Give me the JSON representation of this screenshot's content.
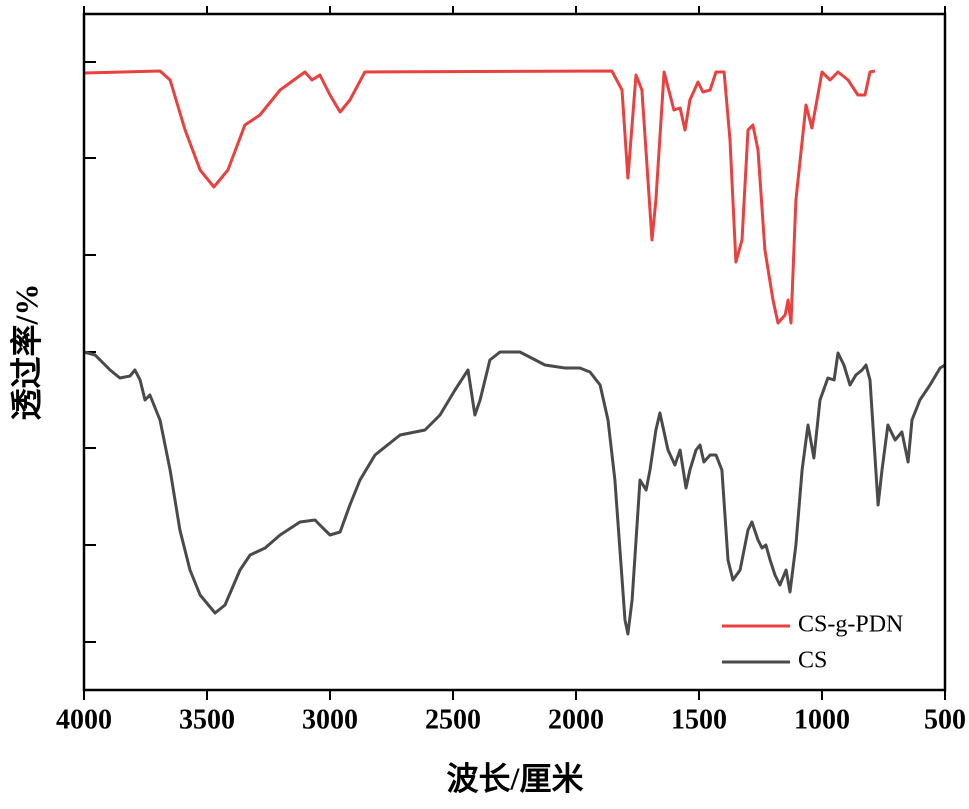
{
  "chart_data": {
    "type": "line",
    "xlabel": "波长/厘米",
    "ylabel": "透过率/%",
    "xlim": [
      4000,
      500
    ],
    "xticks": [
      4000,
      3500,
      3000,
      2500,
      2000,
      1500,
      1000,
      500
    ],
    "ylim": [
      0,
      676
    ],
    "yticks": [
      48,
      145,
      242,
      338,
      435,
      532,
      628
    ],
    "legend": "lower right",
    "series": [
      {
        "name": "CS-g-PDN",
        "color": "#e8413f",
        "x": [
          4000,
          3691,
          3650,
          3589,
          3528,
          3472,
          3415,
          3346,
          3285,
          3203,
          3102,
          3073,
          3041,
          3000,
          2959,
          2919,
          2858,
          1854,
          1813,
          1789,
          1756,
          1732,
          1691,
          1675,
          1642,
          1602,
          1577,
          1557,
          1537,
          1504,
          1484,
          1455,
          1431,
          1398,
          1374,
          1350,
          1325,
          1301,
          1281,
          1260,
          1232,
          1199,
          1179,
          1150,
          1138,
          1126,
          1106,
          1065,
          1041,
          1000,
          967,
          935,
          894,
          854,
          825,
          805,
          785
        ],
        "values": [
          617,
          619,
          610,
          560,
          520,
          503,
          520,
          565,
          575,
          600,
          618,
          610,
          615,
          595,
          578,
          590,
          618,
          619,
          600,
          512,
          615,
          600,
          450,
          490,
          618,
          580,
          582,
          560,
          590,
          608,
          598,
          600,
          618,
          618,
          550,
          428,
          450,
          560,
          565,
          540,
          440,
          390,
          367,
          375,
          390,
          367,
          490,
          585,
          562,
          618,
          610,
          618,
          610,
          595,
          595,
          618,
          619
        ]
      },
      {
        "name": "CS",
        "color": "#4a4a4a",
        "x": [
          4000,
          3955,
          3894,
          3854,
          3813,
          3793,
          3772,
          3752,
          3732,
          3691,
          3650,
          3610,
          3569,
          3528,
          3467,
          3427,
          3366,
          3325,
          3264,
          3203,
          3122,
          3061,
          3041,
          3000,
          2959,
          2919,
          2878,
          2817,
          2715,
          2614,
          2553,
          2492,
          2439,
          2411,
          2390,
          2350,
          2309,
          2228,
          2126,
          2045,
          1984,
          1943,
          1902,
          1870,
          1842,
          1801,
          1789,
          1772,
          1740,
          1715,
          1699,
          1675,
          1659,
          1626,
          1598,
          1577,
          1553,
          1537,
          1512,
          1496,
          1480,
          1455,
          1431,
          1407,
          1382,
          1362,
          1333,
          1301,
          1285,
          1260,
          1244,
          1228,
          1211,
          1191,
          1171,
          1146,
          1130,
          1106,
          1081,
          1057,
          1033,
          1008,
          976,
          951,
          935,
          911,
          886,
          862,
          837,
          821,
          805,
          789,
          772,
          756,
          732,
          703,
          675,
          650,
          634,
          602,
          561,
          520,
          500
        ],
        "values": [
          338,
          335,
          320,
          312,
          314,
          320,
          310,
          290,
          295,
          270,
          220,
          160,
          120,
          95,
          77,
          85,
          120,
          135,
          142,
          155,
          168,
          170,
          165,
          155,
          158,
          185,
          210,
          235,
          255,
          260,
          275,
          300,
          320,
          275,
          290,
          330,
          338,
          338,
          325,
          322,
          322,
          318,
          305,
          270,
          210,
          70,
          56,
          90,
          210,
          200,
          220,
          260,
          277,
          240,
          225,
          240,
          202,
          220,
          240,
          245,
          228,
          235,
          235,
          220,
          130,
          110,
          120,
          160,
          168,
          150,
          142,
          145,
          130,
          115,
          105,
          120,
          98,
          145,
          220,
          265,
          232,
          290,
          312,
          310,
          337,
          325,
          305,
          315,
          320,
          325,
          310,
          250,
          185,
          220,
          265,
          250,
          258,
          228,
          270,
          290,
          305,
          322,
          325
        ]
      }
    ]
  }
}
